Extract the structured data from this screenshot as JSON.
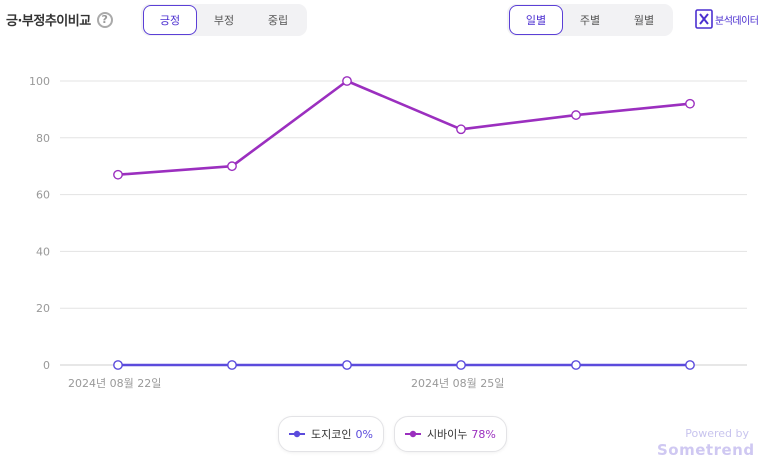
{
  "header": {
    "title": "긍·부정추이비교",
    "help_icon_glyph": "?",
    "sentiment_tabs": [
      {
        "label": "긍정",
        "active": true
      },
      {
        "label": "부정",
        "active": false
      },
      {
        "label": "중립",
        "active": false
      }
    ],
    "period_tabs": [
      {
        "label": "일별",
        "active": true
      },
      {
        "label": "주별",
        "active": false
      },
      {
        "label": "월별",
        "active": false
      }
    ],
    "export_label": "분석데이터",
    "export_icon": "excel-icon"
  },
  "colors": {
    "accent": "#4b2fd0",
    "series_doge": "#5b4bdc",
    "series_shiba": "#9b2fbf",
    "grid": "#e3e3e3"
  },
  "chart_data": {
    "type": "line",
    "x": [
      "2024-08-22",
      "2024-08-23",
      "2024-08-24",
      "2024-08-25",
      "2024-08-26",
      "2024-08-27"
    ],
    "x_tick_labels": [
      "2024년 08월 22일",
      "",
      "",
      "2024년 08월 25일",
      "",
      ""
    ],
    "y_ticks": [
      0,
      20,
      40,
      60,
      80,
      100
    ],
    "ylim": [
      0,
      100
    ],
    "grid": true,
    "series": [
      {
        "name": "도지코인",
        "pct": "0%",
        "color": "#5b4bdc",
        "values": [
          0,
          0,
          0,
          0,
          0,
          0
        ]
      },
      {
        "name": "시바이누",
        "pct": "78%",
        "color": "#9b2fbf",
        "values": [
          67,
          70,
          100,
          83,
          88,
          92
        ]
      }
    ]
  },
  "legend": [
    {
      "name": "도지코인",
      "pct": "0%"
    },
    {
      "name": "시바이누",
      "pct": "78%"
    }
  ],
  "watermark": {
    "line1": "Powered by",
    "line2": "Sometrend"
  }
}
